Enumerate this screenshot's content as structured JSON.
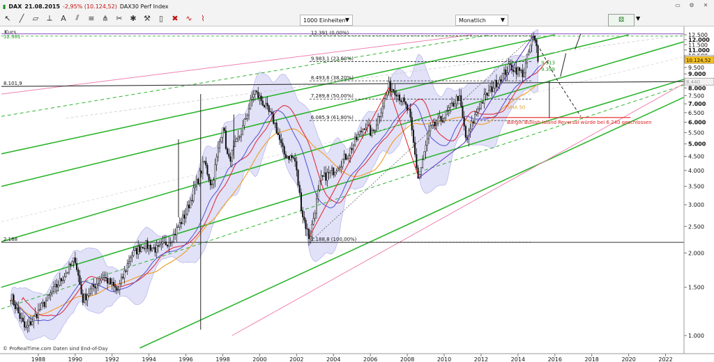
{
  "header": {
    "instrument": "DAX",
    "date": "21.08.2015",
    "change": "-2,95% (10.124,52)",
    "index_name": "DAX30 Perf Index",
    "units_select": "1000 Einheiten",
    "period_select": "Monatlich",
    "colors": {
      "change": "#c01010",
      "accent": "#1a8a1a"
    }
  },
  "toolbar_icons": [
    "cursor-icon",
    "trendline-icon",
    "ruler-icon",
    "measure-icon",
    "text-icon",
    "channel-icon",
    "fibonacci-icon",
    "pitchfork-icon",
    "scissors-icon",
    "star-icon",
    "wrench-icon",
    "trash-icon",
    "delete-icon",
    "oscillator-icon",
    "zigzag-icon"
  ],
  "chart_data": {
    "type": "candlestick",
    "panel_label": "Kurs",
    "footer": "© ProRealTime.com  Daten sind End-of-Day",
    "y_axis": {
      "scale": "log",
      "range": [
        1000,
        12500
      ],
      "ticks": [
        "12.500",
        "12.000",
        "11.500",
        "11.000",
        "10.500",
        "10.000",
        "9.500",
        "9.000",
        "8.500",
        "8.000",
        "7.500",
        "7.000",
        "6.500",
        "6.000",
        "5.500",
        "5.000",
        "4.500",
        "4.000",
        "3.500",
        "3.000",
        "2.500",
        "2.000",
        "1.500",
        "1.000"
      ]
    },
    "x_axis": {
      "range": [
        1986.5,
        2023.5
      ],
      "ticks": [
        "1988",
        "1990",
        "1992",
        "1994",
        "1996",
        "1998",
        "2000",
        "2002",
        "2004",
        "2006",
        "2008",
        "2010",
        "2012",
        "2014",
        "2016",
        "2018",
        "2020",
        "2022"
      ]
    },
    "price_path": [
      [
        1987.0,
        1400
      ],
      [
        1987.8,
        1050
      ],
      [
        1988.6,
        1250
      ],
      [
        1989.6,
        1550
      ],
      [
        1990.5,
        1900
      ],
      [
        1990.9,
        1350
      ],
      [
        1992.0,
        1650
      ],
      [
        1992.8,
        1450
      ],
      [
        1993.5,
        1950
      ],
      [
        1994.2,
        2150
      ],
      [
        1995.0,
        2050
      ],
      [
        1995.8,
        2300
      ],
      [
        1996.5,
        2800
      ],
      [
        1997.5,
        4300
      ],
      [
        1997.9,
        3500
      ],
      [
        1998.5,
        5900
      ],
      [
        1998.8,
        4300
      ],
      [
        1999.5,
        5500
      ],
      [
        2000.2,
        7800
      ],
      [
        2000.6,
        7200
      ],
      [
        2001.3,
        6000
      ],
      [
        2001.8,
        4600
      ],
      [
        2002.4,
        4400
      ],
      [
        2002.8,
        2800
      ],
      [
        2003.2,
        2250
      ],
      [
        2003.8,
        3700
      ],
      [
        2004.5,
        4000
      ],
      [
        2005.3,
        4600
      ],
      [
        2006.2,
        5900
      ],
      [
        2006.6,
        5400
      ],
      [
        2007.5,
        8100
      ],
      [
        2007.9,
        7800
      ],
      [
        2008.6,
        6500
      ],
      [
        2009.1,
        3700
      ],
      [
        2009.7,
        5600
      ],
      [
        2010.5,
        6300
      ],
      [
        2011.3,
        7500
      ],
      [
        2011.7,
        5100
      ],
      [
        2012.3,
        6700
      ],
      [
        2012.7,
        7400
      ],
      [
        2013.4,
        8500
      ],
      [
        2014.1,
        9600
      ],
      [
        2014.8,
        9000
      ],
      [
        2015.3,
        12391
      ],
      [
        2015.5,
        11300
      ],
      [
        2015.6,
        10124
      ]
    ],
    "annotations": {
      "hline_levels": [
        {
          "value": 8101.9,
          "label": "8.101,9"
        },
        {
          "value": 2188,
          "label": "2.188"
        },
        {
          "value": 12391,
          "label": "12.391"
        }
      ],
      "fibonacci": [
        {
          "value": 12391,
          "label": "12.391 (0,00%)"
        },
        {
          "value": 9983.1,
          "label": "9.983,1 (23,60%)"
        },
        {
          "value": 8493.6,
          "label": "8.493,6 (38,20%)"
        },
        {
          "value": 7289.8,
          "label": "7.289,8 (50,00%)"
        },
        {
          "value": 6085.9,
          "label": "6.085,9 (61,80%)"
        },
        {
          "value": 2188.8,
          "label": "2.188,8 (100,00%)"
        }
      ],
      "price_labels": [
        {
          "value": 12361,
          "label": "12.361"
        },
        {
          "value": 10237,
          "label": "10.237"
        },
        {
          "value": 10124.52,
          "label": "10.124,52"
        },
        {
          "value": 8440,
          "label": "8.440"
        }
      ],
      "bollinger_labels": [
        {
          "value": 9913,
          "label": "9.913"
        },
        {
          "value": 9399,
          "label": "9.399"
        }
      ],
      "sma_label": "SMA 50",
      "red_note": "Bärgin Bullish Island Reversal würde bei 6.240 geschlossen",
      "red_level": 6240
    }
  }
}
